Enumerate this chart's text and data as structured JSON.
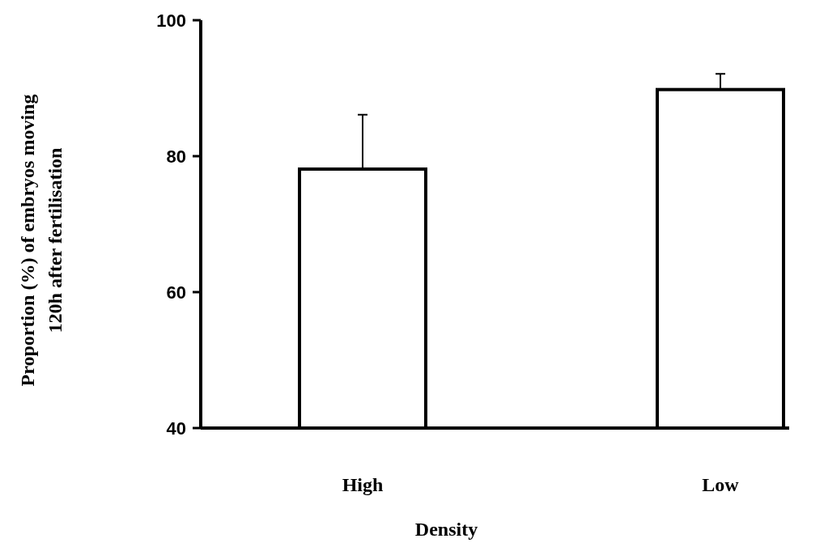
{
  "chart_data": {
    "type": "bar",
    "xlabel": "Density",
    "ylabel": "Proportion (%) of embryos moving\n120h after fertilisation",
    "categories": [
      "High",
      "Low"
    ],
    "values": [
      78.1,
      89.8
    ],
    "errors": [
      [
        78.1,
        86.1
      ],
      [
        89.8,
        92.1
      ]
    ],
    "color": "#ffffff",
    "ylim": [
      40,
      100
    ],
    "yticks": [
      40,
      60,
      80,
      100
    ],
    "grid": false
  }
}
